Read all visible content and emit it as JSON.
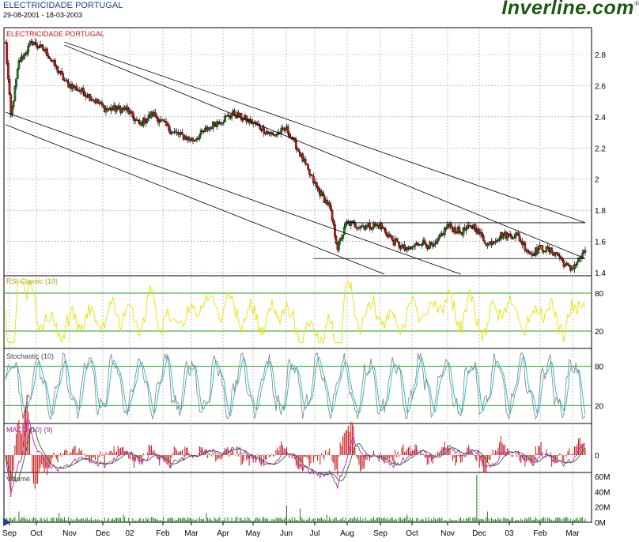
{
  "header": {
    "title": "ELECTRICIDADE PORTUGAL",
    "range": "29-08-2001 - 18-03-2003",
    "brand": "Inverline.com",
    "brand_mark": "®"
  },
  "colors": {
    "up": "#1b7a1b",
    "down": "#c81414",
    "rsi": "#e8e000",
    "stoch_fast": "#8a8a8a",
    "stoch_slow": "#20b8c8",
    "macd_line": "#c020c0",
    "macd_signal": "#207020",
    "macd_hist": "#c81414",
    "volume": "#208020",
    "grid": "#9a9a9a",
    "guide": "#20a020"
  },
  "chart_data": [
    {
      "type": "candlestick",
      "title": "ELECTRICIDADE PORTUGAL",
      "ylim": [
        1.4,
        2.9
      ],
      "yticks": [
        "2.8",
        "2.6",
        "2.4",
        "2.2",
        "2",
        "1.8",
        "1.6",
        "1.4"
      ],
      "ytick_values": [
        2.8,
        2.6,
        2.4,
        2.2,
        2.0,
        1.8,
        1.6,
        1.4
      ],
      "x_labels": [
        "Sep",
        "Oct",
        "Nov",
        "Dec",
        "02",
        "Feb",
        "Mar",
        "Apr",
        "May",
        "Jun",
        "Jul",
        "Aug",
        "Sep",
        "Oct",
        "Nov",
        "Dec",
        "03",
        "Feb",
        "Mar"
      ],
      "close_anchors": [
        [
          0,
          2.87
        ],
        [
          4,
          2.4
        ],
        [
          10,
          2.75
        ],
        [
          20,
          2.88
        ],
        [
          30,
          2.82
        ],
        [
          45,
          2.62
        ],
        [
          60,
          2.55
        ],
        [
          75,
          2.45
        ],
        [
          90,
          2.45
        ],
        [
          100,
          2.35
        ],
        [
          110,
          2.42
        ],
        [
          125,
          2.3
        ],
        [
          140,
          2.25
        ],
        [
          155,
          2.35
        ],
        [
          170,
          2.42
        ],
        [
          185,
          2.36
        ],
        [
          200,
          2.28
        ],
        [
          210,
          2.32
        ],
        [
          218,
          2.2
        ],
        [
          226,
          2.05
        ],
        [
          232,
          1.95
        ],
        [
          242,
          1.82
        ],
        [
          248,
          1.56
        ],
        [
          255,
          1.72
        ],
        [
          265,
          1.7
        ],
        [
          280,
          1.7
        ],
        [
          290,
          1.6
        ],
        [
          300,
          1.54
        ],
        [
          310,
          1.6
        ],
        [
          320,
          1.56
        ],
        [
          330,
          1.7
        ],
        [
          340,
          1.66
        ],
        [
          350,
          1.7
        ],
        [
          360,
          1.58
        ],
        [
          370,
          1.64
        ],
        [
          382,
          1.64
        ],
        [
          392,
          1.52
        ],
        [
          400,
          1.56
        ],
        [
          412,
          1.52
        ],
        [
          418,
          1.45
        ],
        [
          422,
          1.42
        ],
        [
          428,
          1.48
        ],
        [
          433,
          1.53
        ]
      ],
      "trend_lines": [
        [
          [
            0,
            2.35
          ],
          [
            283,
            1.39
          ]
        ],
        [
          [
            0,
            2.43
          ],
          [
            340,
            1.39
          ]
        ],
        [
          [
            44,
            2.88
          ],
          [
            433,
            1.72
          ]
        ],
        [
          [
            44,
            2.86
          ],
          [
            433,
            1.49
          ]
        ]
      ],
      "horizontal_levels": [
        {
          "x0": 253,
          "x1": 433,
          "y": 1.72
        },
        {
          "x0": 230,
          "x1": 433,
          "y": 1.49
        }
      ]
    },
    {
      "type": "line",
      "title": "RSI Classic (10)",
      "ylim": [
        0,
        100
      ],
      "yticks": [
        "80",
        "20"
      ],
      "ytick_values": [
        80,
        20
      ],
      "levels": [
        80,
        20
      ]
    },
    {
      "type": "line",
      "title": "Stochastic (10)",
      "ylim": [
        0,
        100
      ],
      "yticks": [
        "80",
        "20"
      ],
      "ytick_values": [
        80,
        20
      ],
      "levels": [
        80,
        20
      ]
    },
    {
      "type": "line",
      "title": "MACD (10) (9)",
      "ylim": [
        -0.12,
        0.12
      ],
      "yticks": [
        "0"
      ],
      "ytick_values": [
        0
      ]
    },
    {
      "type": "bar",
      "title": "Volume",
      "ylim": [
        0,
        60
      ],
      "yticks": [
        "60M",
        "40M",
        "20M",
        "0M"
      ],
      "ytick_values": [
        60,
        40,
        20,
        0
      ],
      "spikes": [
        [
          10,
          14
        ],
        [
          40,
          12
        ],
        [
          88,
          10
        ],
        [
          150,
          12
        ],
        [
          210,
          22
        ],
        [
          220,
          18
        ],
        [
          240,
          10
        ],
        [
          300,
          10
        ],
        [
          352,
          62
        ],
        [
          360,
          14
        ]
      ]
    }
  ]
}
